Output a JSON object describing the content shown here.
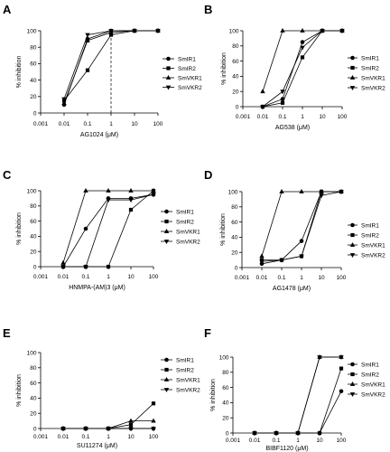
{
  "style": {
    "ink": "#000000",
    "background": "#ffffff"
  },
  "chart_data": [
    {
      "panel": "A",
      "type": "line",
      "xscale": "log",
      "xlim": [
        0.001,
        100
      ],
      "ylim": [
        0,
        100
      ],
      "grid": false,
      "legend": "right",
      "xlabel": "AG1024 (μM)",
      "ylabel": "% inhibition",
      "xticks": [
        "0.001",
        "0.01",
        "0.1",
        "1",
        "10",
        "100"
      ],
      "yticks": [
        "0",
        "20",
        "40",
        "60",
        "80",
        "100"
      ],
      "vlines": [
        1
      ],
      "x": [
        0.01,
        0.1,
        1,
        10,
        100
      ],
      "series": [
        {
          "name": "SmIR1",
          "marker": "circle",
          "values": [
            10,
            90,
            100,
            100,
            100
          ]
        },
        {
          "name": "SmIR2",
          "marker": "square",
          "values": [
            15,
            52,
            95,
            100,
            100
          ]
        },
        {
          "name": "SmVKR1",
          "marker": "triangle-up",
          "values": [
            12,
            88,
            98,
            100,
            100
          ]
        },
        {
          "name": "SmVKR2",
          "marker": "triangle-down",
          "values": [
            17,
            95,
            100,
            100,
            100
          ]
        }
      ]
    },
    {
      "panel": "B",
      "type": "line",
      "xscale": "log",
      "xlim": [
        0.001,
        100
      ],
      "ylim": [
        0,
        100
      ],
      "grid": false,
      "legend": "right",
      "xlabel": "AG538 (μM)",
      "ylabel": "% inhibition",
      "xticks": [
        "0.001",
        "0.01",
        "0.1",
        "1",
        "10",
        "100"
      ],
      "yticks": [
        "0",
        "20",
        "40",
        "60",
        "80",
        "100"
      ],
      "x": [
        0.01,
        0.1,
        1,
        10,
        100
      ],
      "series": [
        {
          "name": "SmIR1",
          "marker": "circle",
          "values": [
            0,
            10,
            85,
            100,
            100
          ]
        },
        {
          "name": "SmIR2",
          "marker": "square",
          "values": [
            0,
            5,
            65,
            100,
            100
          ]
        },
        {
          "name": "SmVKR1",
          "marker": "triangle-up",
          "values": [
            20,
            100,
            100,
            100,
            100
          ]
        },
        {
          "name": "SmVKR2",
          "marker": "triangle-down",
          "values": [
            0,
            20,
            78,
            100,
            100
          ]
        }
      ]
    },
    {
      "panel": "C",
      "type": "line",
      "xscale": "log",
      "xlim": [
        0.001,
        100
      ],
      "ylim": [
        0,
        100
      ],
      "grid": false,
      "legend": "right",
      "xlabel": "HNMPA-(AM)3 (μM)",
      "ylabel": "% inhibition",
      "xticks": [
        "0.001",
        "0.01",
        "0.1",
        "1",
        "10",
        "100"
      ],
      "yticks": [
        "0",
        "20",
        "40",
        "60",
        "80",
        "100"
      ],
      "x": [
        0.01,
        0.1,
        1,
        10,
        100
      ],
      "series": [
        {
          "name": "SmIR1",
          "marker": "circle",
          "values": [
            0,
            50,
            90,
            90,
            95
          ]
        },
        {
          "name": "SmIR2",
          "marker": "square",
          "values": [
            0,
            0,
            0,
            75,
            100
          ]
        },
        {
          "name": "SmVKR1",
          "marker": "triangle-up",
          "values": [
            5,
            100,
            100,
            100,
            100
          ]
        },
        {
          "name": "SmVKR2",
          "marker": "triangle-down",
          "values": [
            0,
            0,
            88,
            88,
            95
          ]
        }
      ]
    },
    {
      "panel": "D",
      "type": "line",
      "xscale": "log",
      "xlim": [
        0.001,
        100
      ],
      "ylim": [
        0,
        100
      ],
      "grid": false,
      "legend": "right",
      "xlabel": "AG1478 (μM)",
      "ylabel": "% inhibition",
      "xticks": [
        "0.001",
        "0.01",
        "0.1",
        "1",
        "10",
        "100"
      ],
      "yticks": [
        "0",
        "20",
        "40",
        "60",
        "80",
        "100"
      ],
      "x": [
        0.01,
        0.1,
        1,
        10,
        100
      ],
      "series": [
        {
          "name": "SmIR1",
          "marker": "circle",
          "values": [
            5,
            10,
            35,
            100,
            100
          ]
        },
        {
          "name": "SmIR2",
          "marker": "square",
          "values": [
            10,
            10,
            15,
            100,
            100
          ]
        },
        {
          "name": "SmVKR1",
          "marker": "triangle-up",
          "values": [
            15,
            100,
            100,
            100,
            100
          ]
        },
        {
          "name": "SmVKR2",
          "marker": "triangle-down",
          "values": [
            8,
            10,
            15,
            95,
            100
          ]
        }
      ]
    },
    {
      "panel": "E",
      "type": "line",
      "xscale": "log",
      "xlim": [
        0.001,
        100
      ],
      "ylim": [
        0,
        100
      ],
      "grid": false,
      "legend": "right",
      "xlabel": "SU11274 (μM)",
      "ylabel": "% inhibition",
      "xticks": [
        "0.001",
        "0.01",
        "0.1",
        "1",
        "10",
        "100"
      ],
      "yticks": [
        "0",
        "20",
        "40",
        "60",
        "80",
        "100"
      ],
      "x": [
        0.01,
        0.1,
        1,
        10,
        100
      ],
      "series": [
        {
          "name": "SmIR1",
          "marker": "circle",
          "values": [
            0,
            0,
            0,
            0,
            0
          ]
        },
        {
          "name": "SmIR2",
          "marker": "square",
          "values": [
            0,
            0,
            0,
            5,
            33
          ]
        },
        {
          "name": "SmVKR1",
          "marker": "triangle-up",
          "values": [
            0,
            0,
            0,
            10,
            10
          ]
        },
        {
          "name": "SmVKR2",
          "marker": "triangle-down",
          "values": [
            0,
            0,
            0,
            0,
            0
          ]
        }
      ]
    },
    {
      "panel": "F",
      "type": "line",
      "xscale": "log",
      "xlim": [
        0.001,
        100
      ],
      "ylim": [
        0,
        100
      ],
      "grid": false,
      "legend": "right",
      "xlabel": "BIBF1120 (μM)",
      "ylabel": "% inhibition",
      "xticks": [
        "0.001",
        "0.01",
        "0.1",
        "1",
        "10",
        "100"
      ],
      "yticks": [
        "0",
        "20",
        "40",
        "60",
        "80",
        "100"
      ],
      "x": [
        0.01,
        0.1,
        1,
        10,
        100
      ],
      "series": [
        {
          "name": "SmIR1",
          "marker": "circle",
          "values": [
            0,
            0,
            0,
            0,
            55
          ]
        },
        {
          "name": "SmIR2",
          "marker": "square",
          "values": [
            0,
            0,
            0,
            0,
            85
          ]
        },
        {
          "name": "SmVKR1",
          "marker": "triangle-up",
          "values": [
            0,
            0,
            0,
            100,
            100
          ]
        },
        {
          "name": "SmVKR2",
          "marker": "triangle-down",
          "values": [
            0,
            0,
            0,
            100,
            100
          ]
        }
      ]
    }
  ]
}
